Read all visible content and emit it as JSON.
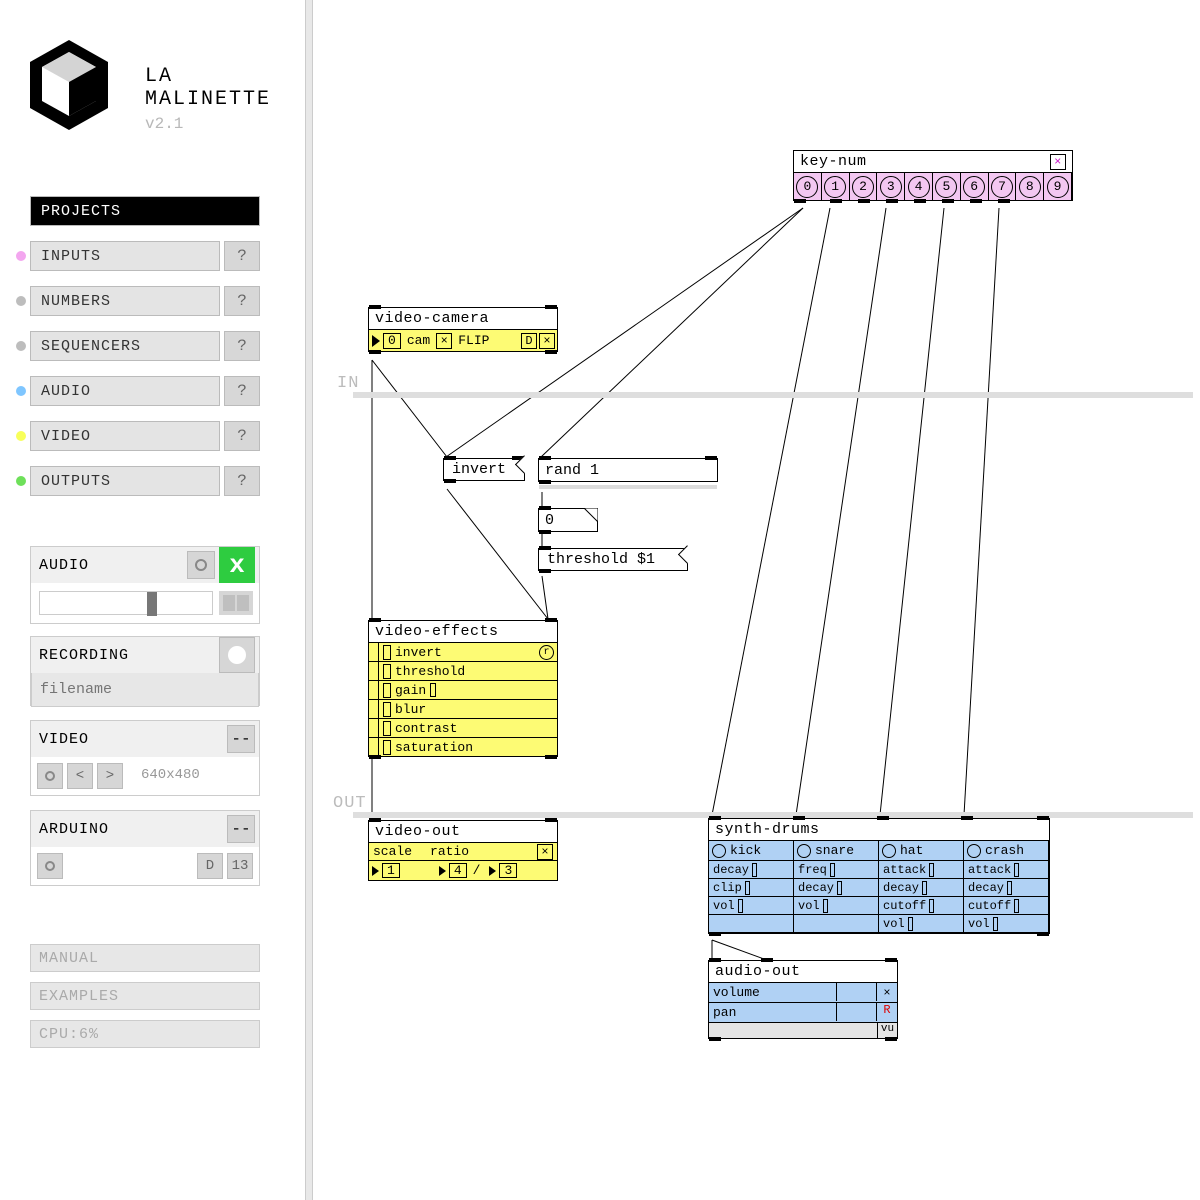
{
  "brand": {
    "line1": "LA",
    "line2": "MALINETTE",
    "version": "v2.1"
  },
  "colors": {
    "yellow": "#fdfb74",
    "blue": "#b0d1f4",
    "pink": "#f3c7f1",
    "green": "#2ecc40"
  },
  "categories": [
    {
      "label": "PROJECTS",
      "help": "",
      "dot": "",
      "bg": "#000000",
      "fg": "#ffffff",
      "full": true
    },
    {
      "label": "INPUTS",
      "help": "?",
      "dot": "#f3a6ef",
      "bg": "#e4e4e4",
      "fg": "#333"
    },
    {
      "label": "NUMBERS",
      "help": "?",
      "dot": "#bdbdbd",
      "bg": "#e4e4e4",
      "fg": "#333"
    },
    {
      "label": "SEQUENCERS",
      "help": "?",
      "dot": "#bdbdbd",
      "bg": "#e4e4e4",
      "fg": "#333"
    },
    {
      "label": "AUDIO",
      "help": "?",
      "dot": "#7fc6ff",
      "bg": "#e4e4e4",
      "fg": "#333"
    },
    {
      "label": "VIDEO",
      "help": "?",
      "dot": "#f8ff5a",
      "bg": "#e4e4e4",
      "fg": "#333"
    },
    {
      "label": "OUTPUTS",
      "help": "?",
      "dot": "#6ee05a",
      "bg": "#e4e4e4",
      "fg": "#333"
    }
  ],
  "audioPanel": {
    "title": "AUDIO",
    "on": "x",
    "sliderPct": 0.62
  },
  "recording": {
    "title": "RECORDING",
    "placeholder": "filename"
  },
  "videoPanel": {
    "title": "VIDEO",
    "dash": "--",
    "res": "640x480"
  },
  "arduinoPanel": {
    "title": "ARDUINO",
    "dash": "--",
    "d": "D",
    "dn": "13"
  },
  "footer": {
    "manual": "MANUAL",
    "examples": "EXAMPLES",
    "cpu": "CPU:6%"
  },
  "lanes": {
    "in": "IN",
    "out": "OUT"
  },
  "keynum": {
    "title": "key-num",
    "digits": [
      "0",
      "1",
      "2",
      "3",
      "4",
      "5",
      "6",
      "7",
      "8",
      "9"
    ]
  },
  "vcam": {
    "title": "video-camera",
    "zero": "0",
    "cam": "cam",
    "flip": "FLIP",
    "d": "D"
  },
  "invert": {
    "label": "invert"
  },
  "rand": {
    "label": "rand 1"
  },
  "numbox": {
    "label": "0"
  },
  "thresh": {
    "label": "threshold $1"
  },
  "vfx": {
    "title": "video-effects",
    "rows": [
      "invert",
      "threshold",
      "gain",
      "blur",
      "contrast",
      "saturation"
    ]
  },
  "vout": {
    "title": "video-out",
    "scale": "scale",
    "ratio": "ratio",
    "a": "1",
    "b": "4",
    "slash": "/",
    "c": "3"
  },
  "drums": {
    "title": "synth-drums",
    "cols": [
      {
        "name": "kick",
        "rows": [
          "decay",
          "clip",
          "vol"
        ]
      },
      {
        "name": "snare",
        "rows": [
          "freq",
          "decay",
          "vol"
        ]
      },
      {
        "name": "hat",
        "rows": [
          "attack",
          "decay",
          "cutoff",
          "vol"
        ]
      },
      {
        "name": "crash",
        "rows": [
          "attack",
          "decay",
          "cutoff",
          "vol"
        ]
      }
    ]
  },
  "aout": {
    "title": "audio-out",
    "rows": [
      "volume",
      "pan"
    ],
    "r": "R",
    "vu": "vu"
  }
}
